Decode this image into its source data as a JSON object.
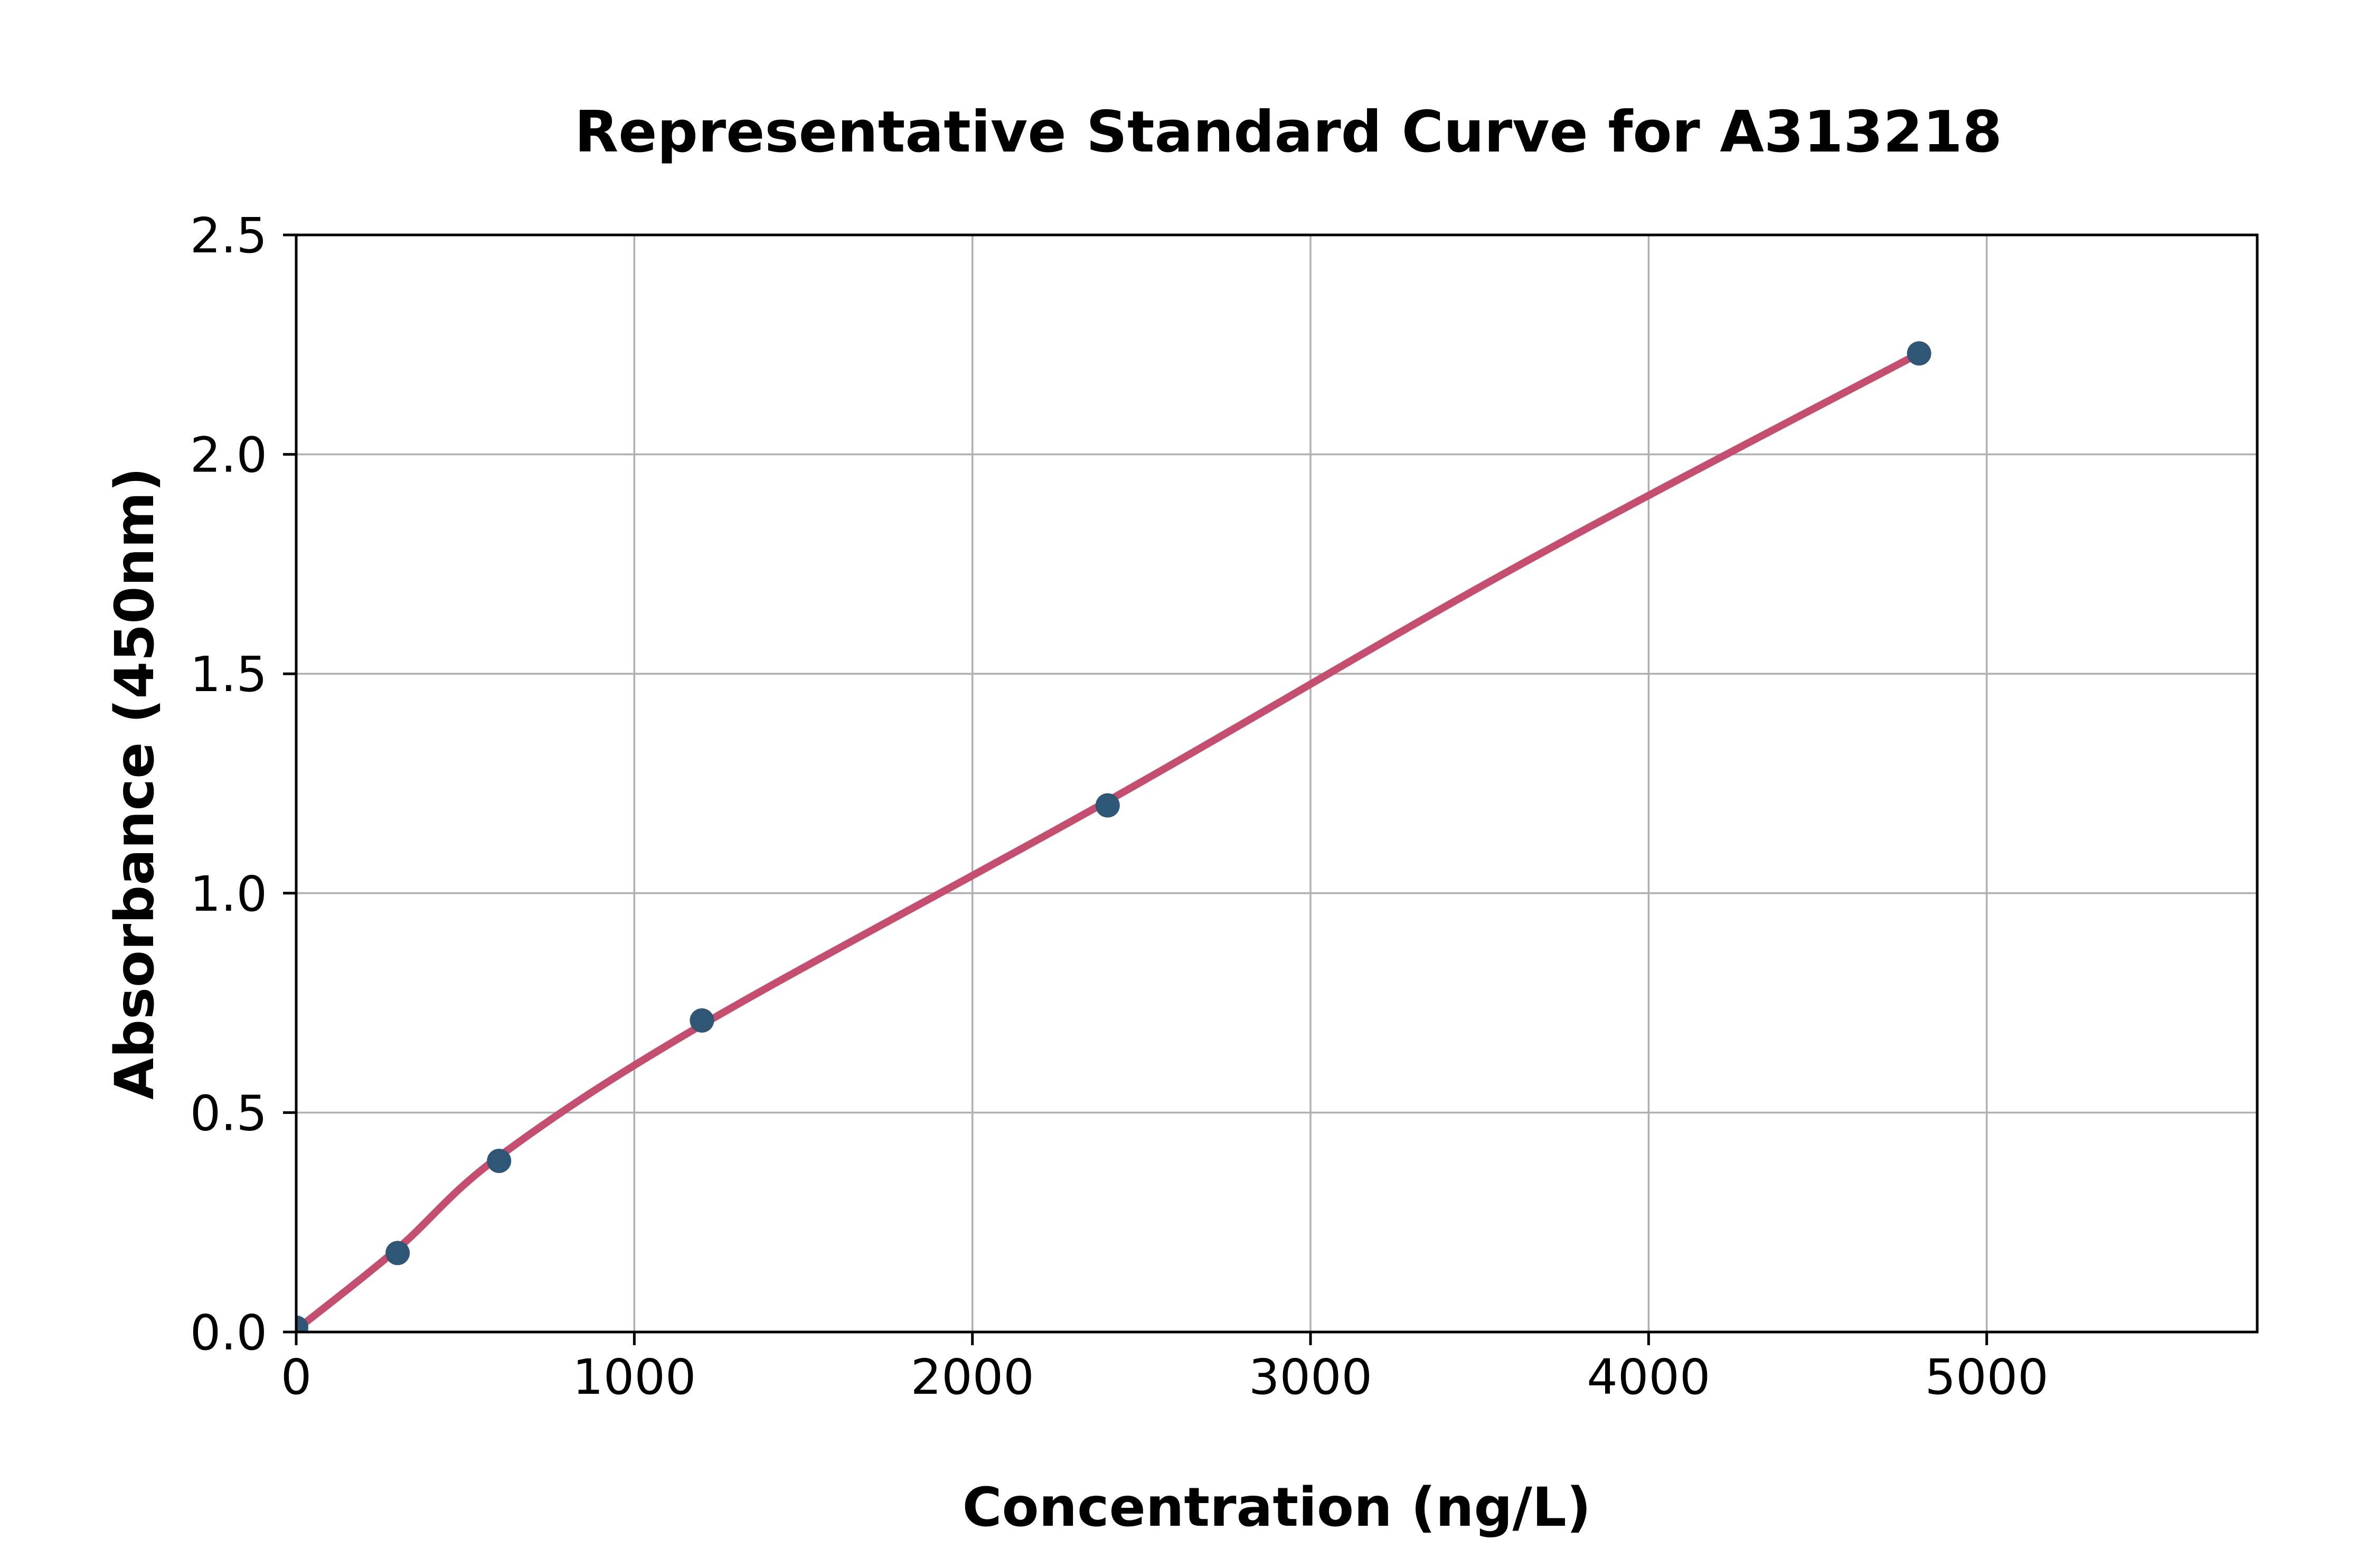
{
  "chart_data": {
    "type": "scatter",
    "title": "Representative Standard Curve for A313218",
    "xlabel": "Concentration (ng/L)",
    "ylabel": "Absorbance (450nm)",
    "xlim": [
      0,
      5800
    ],
    "ylim": [
      0,
      2.5
    ],
    "xticks": [
      0,
      1000,
      2000,
      3000,
      4000,
      5000
    ],
    "ytick_labels": [
      "0.0",
      "0.5",
      "1.0",
      "1.5",
      "2.0",
      "2.5"
    ],
    "ytick_values": [
      0,
      0.5,
      1.0,
      1.5,
      2.0,
      2.5
    ],
    "grid": true,
    "legend": "none",
    "points": [
      [
        0,
        0.01
      ],
      [
        300,
        0.18
      ],
      [
        600,
        0.39
      ],
      [
        1200,
        0.71
      ],
      [
        2400,
        1.2
      ],
      [
        4800,
        2.23
      ]
    ],
    "fit_line": [
      [
        0,
        0.005
      ],
      [
        300,
        0.19
      ],
      [
        600,
        0.4
      ],
      [
        1200,
        0.7
      ],
      [
        2400,
        1.21
      ],
      [
        3600,
        1.74
      ],
      [
        4800,
        2.23
      ]
    ],
    "colors": {
      "marker": "#2F5674",
      "line": "#C44E6F",
      "grid": "#B0B0B0",
      "axis": "#000000",
      "background": "#FFFFFF"
    }
  }
}
